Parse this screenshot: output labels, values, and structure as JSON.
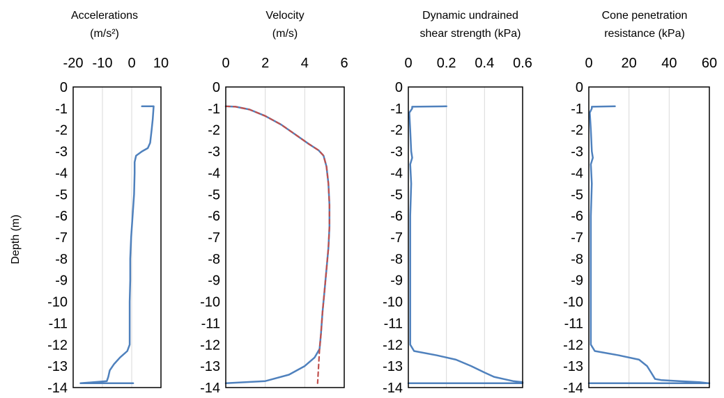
{
  "chart_data": [
    {
      "type": "line",
      "title_lines": [
        "Accelerations",
        "(m/s²)"
      ],
      "ylabel": "Depth (m)",
      "xlim": [
        -20,
        10
      ],
      "ylim": [
        -14,
        0
      ],
      "x_ticks": [
        -20,
        -10,
        0,
        10
      ],
      "x_tick_labels": [
        "-20",
        "-10",
        "0",
        "10"
      ],
      "y_ticks": [
        0,
        -1,
        -2,
        -3,
        -4,
        -5,
        -6,
        -7,
        -8,
        -9,
        -10,
        -11,
        -12,
        -13,
        -14
      ],
      "y_tick_labels": [
        "0",
        "-1",
        "-2",
        "-3",
        "-4",
        "-5",
        "-6",
        "-7",
        "-8",
        "-9",
        "-10",
        "-11",
        "-12",
        "-13",
        "-14"
      ],
      "vertical_grid": true,
      "series": [
        {
          "color": "#4f81bd",
          "style": "solid",
          "points": [
            [
              3.5,
              -0.9
            ],
            [
              7.5,
              -0.9
            ],
            [
              7.2,
              -1.5
            ],
            [
              6.8,
              -2.0
            ],
            [
              6.3,
              -2.6
            ],
            [
              5.5,
              -2.85
            ],
            [
              3.5,
              -3.0
            ],
            [
              1.5,
              -3.2
            ],
            [
              1,
              -3.5
            ],
            [
              1,
              -4.0
            ],
            [
              0.8,
              -5.0
            ],
            [
              0.3,
              -6.0
            ],
            [
              -0.2,
              -7.0
            ],
            [
              -0.5,
              -8.0
            ],
            [
              -0.5,
              -9.0
            ],
            [
              -0.7,
              -10.0
            ],
            [
              -0.7,
              -11.0
            ],
            [
              -0.7,
              -12.0
            ],
            [
              -1.5,
              -12.3
            ],
            [
              -4,
              -12.6
            ],
            [
              -6,
              -12.9
            ],
            [
              -7.5,
              -13.2
            ],
            [
              -8,
              -13.5
            ],
            [
              -8.5,
              -13.7
            ],
            [
              -17.5,
              -13.8
            ],
            [
              0.5,
              -13.8
            ]
          ]
        }
      ]
    },
    {
      "type": "line",
      "title_lines": [
        "Velocity",
        "(m/s)"
      ],
      "xlim": [
        0,
        6
      ],
      "ylim": [
        -14,
        0
      ],
      "x_ticks": [
        0,
        2,
        4,
        6
      ],
      "x_tick_labels": [
        "0",
        "2",
        "4",
        "6"
      ],
      "y_ticks": [
        0,
        -1,
        -2,
        -3,
        -4,
        -5,
        -6,
        -7,
        -8,
        -9,
        -10,
        -11,
        -12,
        -13,
        -14
      ],
      "y_tick_labels": [
        "0",
        "-1",
        "-2",
        "-3",
        "-4",
        "-5",
        "-6",
        "-7",
        "-8",
        "-9",
        "-10",
        "-11",
        "-12",
        "-13",
        "-14"
      ],
      "vertical_grid": true,
      "series": [
        {
          "color": "#4f81bd",
          "style": "solid",
          "points": [
            [
              0,
              -0.9
            ],
            [
              0.5,
              -0.92
            ],
            [
              1.2,
              -1.05
            ],
            [
              2.0,
              -1.35
            ],
            [
              2.8,
              -1.75
            ],
            [
              3.5,
              -2.2
            ],
            [
              4.2,
              -2.65
            ],
            [
              4.7,
              -2.95
            ],
            [
              4.95,
              -3.2
            ],
            [
              5.1,
              -3.7
            ],
            [
              5.2,
              -4.5
            ],
            [
              5.25,
              -5.5
            ],
            [
              5.25,
              -6.5
            ],
            [
              5.2,
              -7.5
            ],
            [
              5.1,
              -8.5
            ],
            [
              5.0,
              -9.5
            ],
            [
              4.9,
              -10.5
            ],
            [
              4.82,
              -11.5
            ],
            [
              4.75,
              -12.2
            ],
            [
              4.5,
              -12.6
            ],
            [
              4.0,
              -13.0
            ],
            [
              3.2,
              -13.4
            ],
            [
              2.0,
              -13.7
            ],
            [
              0,
              -13.8
            ]
          ]
        },
        {
          "color": "#c0504d",
          "style": "dashed",
          "points": [
            [
              0,
              -0.9
            ],
            [
              0.5,
              -0.92
            ],
            [
              1.2,
              -1.05
            ],
            [
              2.0,
              -1.35
            ],
            [
              2.8,
              -1.75
            ],
            [
              3.5,
              -2.2
            ],
            [
              4.2,
              -2.65
            ],
            [
              4.7,
              -2.95
            ],
            [
              4.95,
              -3.2
            ],
            [
              5.1,
              -3.7
            ],
            [
              5.2,
              -4.5
            ],
            [
              5.25,
              -5.5
            ],
            [
              5.25,
              -6.5
            ],
            [
              5.2,
              -7.5
            ],
            [
              5.1,
              -8.5
            ],
            [
              5.0,
              -9.5
            ],
            [
              4.9,
              -10.5
            ],
            [
              4.82,
              -11.5
            ],
            [
              4.75,
              -12.2
            ],
            [
              4.7,
              -13.0
            ],
            [
              4.65,
              -13.8
            ]
          ]
        }
      ]
    },
    {
      "type": "line",
      "title_lines": [
        "Dynamic undrained",
        "shear strength (kPa)"
      ],
      "xlim": [
        0,
        0.6
      ],
      "ylim": [
        -14,
        0
      ],
      "x_ticks": [
        0,
        0.2,
        0.4,
        0.6
      ],
      "x_tick_labels": [
        "0",
        "0.2",
        "0.4",
        "0.6"
      ],
      "y_ticks": [
        0,
        -1,
        -2,
        -3,
        -4,
        -5,
        -6,
        -7,
        -8,
        -9,
        -10,
        -11,
        -12,
        -13,
        -14
      ],
      "y_tick_labels": [
        "0",
        "-1",
        "-2",
        "-3",
        "-4",
        "-5",
        "-6",
        "-7",
        "-8",
        "-9",
        "-10",
        "-11",
        "-12",
        "-13",
        "-14"
      ],
      "vertical_grid": true,
      "series": [
        {
          "color": "#4f81bd",
          "style": "solid",
          "points": [
            [
              0.2,
              -0.9
            ],
            [
              0.02,
              -0.92
            ],
            [
              0.02,
              -1.0
            ],
            [
              0.005,
              -1.2
            ],
            [
              0.01,
              -2.0
            ],
            [
              0.015,
              -3.0
            ],
            [
              0.02,
              -3.3
            ],
            [
              0.01,
              -3.6
            ],
            [
              0.015,
              -4.5
            ],
            [
              0.01,
              -6.0
            ],
            [
              0.01,
              -8.0
            ],
            [
              0.01,
              -10.0
            ],
            [
              0.01,
              -11.5
            ],
            [
              0.01,
              -12.0
            ],
            [
              0.03,
              -12.3
            ],
            [
              0.15,
              -12.5
            ],
            [
              0.25,
              -12.7
            ],
            [
              0.33,
              -13.0
            ],
            [
              0.4,
              -13.3
            ],
            [
              0.45,
              -13.5
            ],
            [
              0.5,
              -13.6
            ],
            [
              0.55,
              -13.7
            ],
            [
              0.6,
              -13.75
            ],
            [
              0.6,
              -13.8
            ],
            [
              0.0,
              -13.8
            ]
          ]
        }
      ]
    },
    {
      "type": "line",
      "title_lines": [
        "Cone penetration",
        "resistance (kPa)"
      ],
      "xlim": [
        0,
        60
      ],
      "ylim": [
        -14,
        0
      ],
      "x_ticks": [
        0,
        20,
        40,
        60
      ],
      "x_tick_labels": [
        "0",
        "20",
        "40",
        "60"
      ],
      "y_ticks": [
        0,
        -1,
        -2,
        -3,
        -4,
        -5,
        -6,
        -7,
        -8,
        -9,
        -10,
        -11,
        -12,
        -13,
        -14
      ],
      "y_tick_labels": [
        "0",
        "-1",
        "-2",
        "-3",
        "-4",
        "-5",
        "-6",
        "-7",
        "-8",
        "-9",
        "-10",
        "-11",
        "-12",
        "-13",
        "-14"
      ],
      "vertical_grid": true,
      "series": [
        {
          "color": "#4f81bd",
          "style": "solid",
          "points": [
            [
              13,
              -0.9
            ],
            [
              1.5,
              -0.92
            ],
            [
              1.5,
              -1.0
            ],
            [
              0.5,
              -1.2
            ],
            [
              1,
              -2.0
            ],
            [
              1.5,
              -3.0
            ],
            [
              2,
              -3.3
            ],
            [
              1,
              -3.6
            ],
            [
              1.5,
              -4.5
            ],
            [
              1,
              -6.0
            ],
            [
              1,
              -8.0
            ],
            [
              1,
              -10.0
            ],
            [
              1,
              -11.5
            ],
            [
              1,
              -12.0
            ],
            [
              3,
              -12.3
            ],
            [
              15,
              -12.5
            ],
            [
              25,
              -12.7
            ],
            [
              29,
              -13.0
            ],
            [
              31,
              -13.3
            ],
            [
              33,
              -13.6
            ],
            [
              36,
              -13.65
            ],
            [
              45,
              -13.7
            ],
            [
              55,
              -13.75
            ],
            [
              60,
              -13.8
            ],
            [
              0,
              -13.8
            ]
          ]
        }
      ]
    }
  ]
}
